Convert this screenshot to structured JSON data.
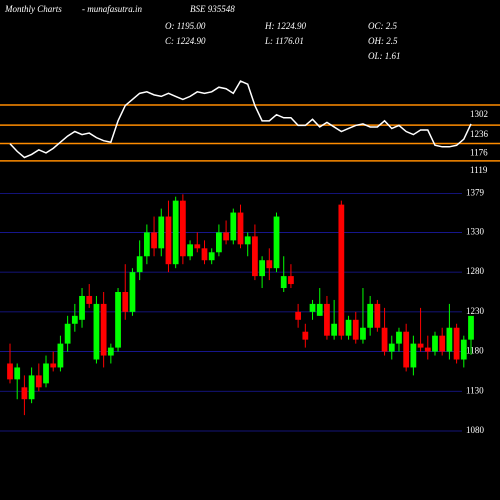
{
  "header": {
    "site": "Monthly Charts",
    "domain": "- munafasutra.in",
    "symbol": "BSE 935548",
    "open": "O: 1195.00",
    "high": "H: 1224.90",
    "close": "C: 1224.90",
    "low": "L: 1176.01",
    "oc": "OC: 2.5",
    "oh": "OH: 2.5",
    "ol": "OL: 1.61"
  },
  "chart_data": [
    {
      "type": "candlestick",
      "open": [
        1165,
        1145,
        1135,
        1120,
        1150,
        1140,
        1165,
        1160,
        1190,
        1215,
        1220,
        1250,
        1170,
        1240,
        1175,
        1185,
        1255,
        1230,
        1280,
        1300,
        1330,
        1310,
        1350,
        1290,
        1370,
        1300,
        1315,
        1310,
        1295,
        1305,
        1330,
        1320,
        1355,
        1315,
        1325,
        1275,
        1295,
        1285,
        1260,
        1275,
        1230,
        1205,
        1230,
        1225,
        1240,
        1200,
        1365,
        1200,
        1220,
        1195,
        1210,
        1240,
        1210,
        1180,
        1190,
        1205,
        1160,
        1190,
        1185,
        1180,
        1200,
        1180,
        1210,
        1170,
        1195
      ],
      "high": [
        1190,
        1165,
        1150,
        1160,
        1165,
        1175,
        1180,
        1200,
        1225,
        1240,
        1260,
        1265,
        1250,
        1255,
        1190,
        1260,
        1290,
        1285,
        1320,
        1340,
        1350,
        1360,
        1370,
        1375,
        1378,
        1320,
        1330,
        1320,
        1310,
        1340,
        1345,
        1360,
        1365,
        1330,
        1340,
        1300,
        1310,
        1355,
        1300,
        1290,
        1240,
        1215,
        1245,
        1260,
        1250,
        1245,
        1370,
        1225,
        1230,
        1260,
        1250,
        1245,
        1235,
        1200,
        1210,
        1215,
        1200,
        1235,
        1200,
        1205,
        1210,
        1240,
        1215,
        1200,
        1224.9
      ],
      "low": [
        1140,
        1120,
        1100,
        1115,
        1130,
        1135,
        1155,
        1155,
        1180,
        1205,
        1210,
        1235,
        1165,
        1160,
        1165,
        1180,
        1220,
        1225,
        1270,
        1290,
        1300,
        1300,
        1280,
        1285,
        1290,
        1295,
        1305,
        1290,
        1290,
        1300,
        1315,
        1315,
        1310,
        1300,
        1270,
        1260,
        1270,
        1280,
        1255,
        1260,
        1210,
        1185,
        1220,
        1225,
        1195,
        1195,
        1195,
        1195,
        1190,
        1190,
        1200,
        1205,
        1175,
        1170,
        1180,
        1155,
        1150,
        1180,
        1170,
        1175,
        1175,
        1170,
        1165,
        1160,
        1176.01
      ],
      "close": [
        1145,
        1160,
        1120,
        1150,
        1135,
        1165,
        1160,
        1190,
        1215,
        1225,
        1250,
        1240,
        1240,
        1175,
        1185,
        1255,
        1230,
        1280,
        1300,
        1330,
        1310,
        1350,
        1290,
        1370,
        1300,
        1315,
        1310,
        1295,
        1305,
        1330,
        1320,
        1355,
        1315,
        1325,
        1275,
        1295,
        1285,
        1350,
        1275,
        1265,
        1220,
        1195,
        1240,
        1240,
        1200,
        1215,
        1200,
        1220,
        1195,
        1210,
        1240,
        1210,
        1180,
        1190,
        1205,
        1160,
        1190,
        1185,
        1180,
        1200,
        1180,
        1210,
        1170,
        1195,
        1224.9
      ],
      "up_color": "#00ff00",
      "down_color": "#ff0000",
      "grid_color": "#1a1aa0",
      "ylim": [
        1080,
        1396
      ],
      "yticks": [
        1379,
        1330,
        1280,
        1230,
        1180,
        1130,
        1080
      ],
      "grid": true
    },
    {
      "type": "line",
      "color": "#ffffff",
      "level_color": "#ff8c00",
      "values": [
        1175,
        1150,
        1130,
        1140,
        1155,
        1145,
        1160,
        1180,
        1200,
        1215,
        1205,
        1210,
        1195,
        1185,
        1180,
        1250,
        1300,
        1320,
        1340,
        1345,
        1335,
        1330,
        1340,
        1330,
        1320,
        1330,
        1345,
        1340,
        1345,
        1360,
        1355,
        1340,
        1380,
        1370,
        1300,
        1250,
        1250,
        1270,
        1260,
        1260,
        1235,
        1235,
        1255,
        1230,
        1245,
        1230,
        1215,
        1225,
        1235,
        1240,
        1230,
        1230,
        1250,
        1225,
        1235,
        1215,
        1205,
        1220,
        1220,
        1170,
        1165,
        1165,
        1170,
        1190,
        1240
      ],
      "ylim": [
        1040,
        1400
      ],
      "yticks": [
        1302,
        1236,
        1176,
        1119
      ],
      "grid": true
    }
  ]
}
